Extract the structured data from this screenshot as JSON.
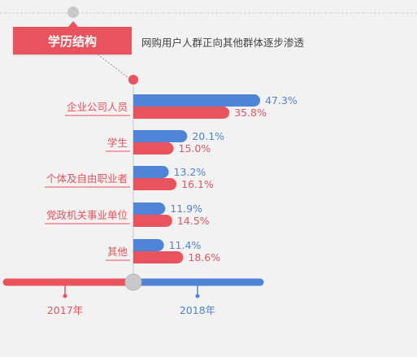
{
  "header": {
    "title": "学历结构",
    "subtitle": "网购用户人群正向其他群体逐步渗透"
  },
  "colors": {
    "series_2017": "#e9535d",
    "series_2018": "#4f84d6",
    "background": "#f2f2f2",
    "axis": "#cfcfcf",
    "knob": "#c9c9c9"
  },
  "timeline": {
    "labels": [
      "2017年",
      "2018年"
    ],
    "selected": "2018年"
  },
  "chart_data": {
    "type": "bar",
    "orientation": "horizontal",
    "categories": [
      "企业公司人员",
      "学生",
      "个体及自由职业者",
      "党政机关事业单位",
      "其他"
    ],
    "series": [
      {
        "name": "2018年",
        "values": [
          47.3,
          20.1,
          13.2,
          11.9,
          11.4
        ],
        "labels": [
          "47.3%",
          "20.1%",
          "13.2%",
          "11.9%",
          "11.4%"
        ]
      },
      {
        "name": "2017年",
        "values": [
          35.8,
          15.0,
          16.1,
          14.5,
          18.6
        ],
        "labels": [
          "35.8%",
          "15.0%",
          "16.1%",
          "14.5%",
          "18.6%"
        ]
      }
    ],
    "unit": "%",
    "xlim": [
      0,
      50
    ]
  }
}
